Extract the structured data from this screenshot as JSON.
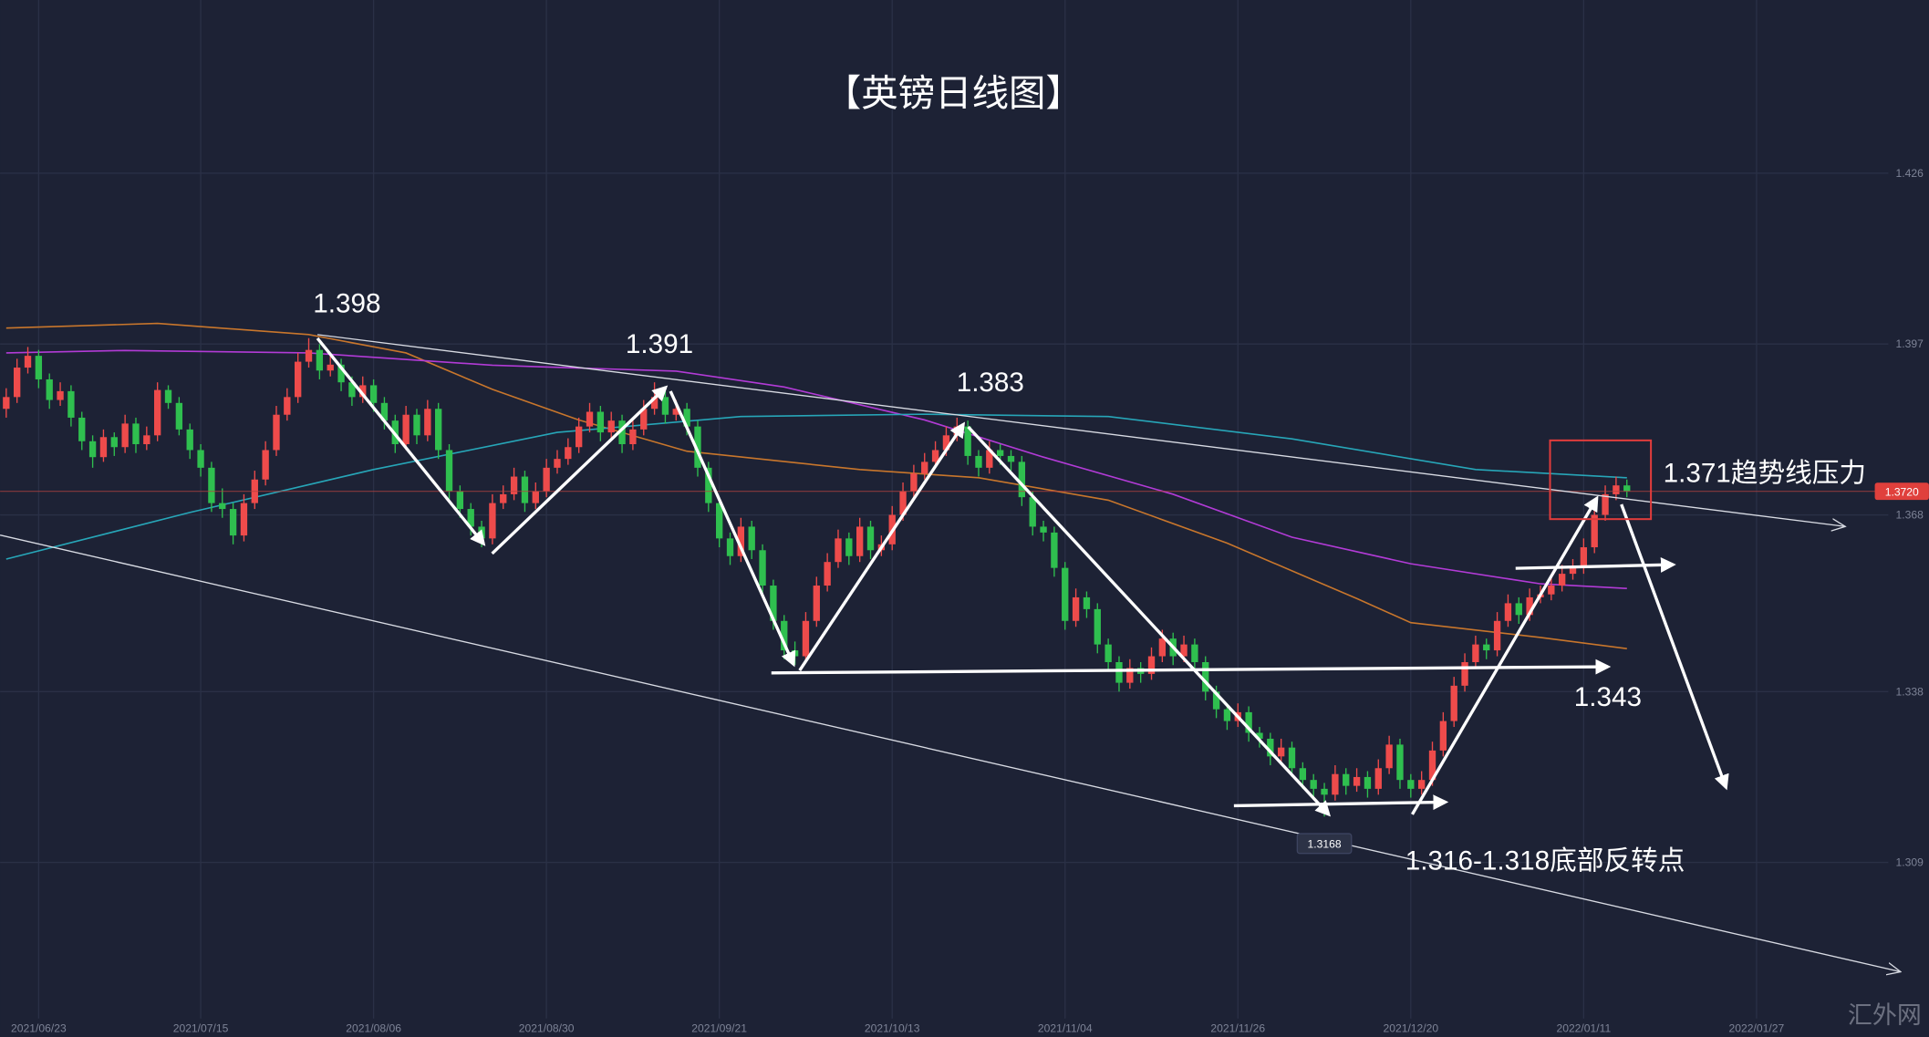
{
  "chart_data": {
    "type": "candlestick",
    "title": "【英镑日线图】",
    "up_color": "#ee4b4b",
    "down_color": "#2fbf4f",
    "candles": [
      [
        1.386,
        1.3895,
        1.3845,
        1.388
      ],
      [
        1.388,
        1.3945,
        1.387,
        1.393
      ],
      [
        1.393,
        1.3965,
        1.392,
        1.395
      ],
      [
        1.395,
        1.396,
        1.3895,
        1.391
      ],
      [
        1.391,
        1.392,
        1.386,
        1.3875
      ],
      [
        1.3875,
        1.3905,
        1.3865,
        1.389
      ],
      [
        1.389,
        1.39,
        1.383,
        1.3845
      ],
      [
        1.3845,
        1.3855,
        1.379,
        1.3805
      ],
      [
        1.3805,
        1.3815,
        1.376,
        1.3778
      ],
      [
        1.3778,
        1.3825,
        1.377,
        1.3812
      ],
      [
        1.3812,
        1.382,
        1.378,
        1.3795
      ],
      [
        1.3795,
        1.385,
        1.3785,
        1.3835
      ],
      [
        1.3835,
        1.3845,
        1.3785,
        1.38
      ],
      [
        1.38,
        1.383,
        1.379,
        1.3815
      ],
      [
        1.3815,
        1.3905,
        1.3805,
        1.3892
      ],
      [
        1.3892,
        1.39,
        1.386,
        1.387
      ],
      [
        1.387,
        1.388,
        1.3815,
        1.3825
      ],
      [
        1.3825,
        1.3835,
        1.3775,
        1.379
      ],
      [
        1.379,
        1.38,
        1.3745,
        1.376
      ],
      [
        1.376,
        1.377,
        1.3685,
        1.37
      ],
      [
        1.37,
        1.3725,
        1.3675,
        1.369
      ],
      [
        1.369,
        1.37,
        1.363,
        1.3645
      ],
      [
        1.3645,
        1.3715,
        1.3635,
        1.37
      ],
      [
        1.37,
        1.3755,
        1.369,
        1.374
      ],
      [
        1.374,
        1.3805,
        1.373,
        1.379
      ],
      [
        1.379,
        1.3865,
        1.378,
        1.385
      ],
      [
        1.385,
        1.3895,
        1.384,
        1.388
      ],
      [
        1.388,
        1.3955,
        1.387,
        1.394
      ],
      [
        1.394,
        1.398,
        1.393,
        1.396
      ],
      [
        1.396,
        1.397,
        1.391,
        1.3925
      ],
      [
        1.3925,
        1.395,
        1.3915,
        1.3935
      ],
      [
        1.3935,
        1.3945,
        1.389,
        1.3905
      ],
      [
        1.3905,
        1.3915,
        1.3865,
        1.388
      ],
      [
        1.388,
        1.3915,
        1.387,
        1.39
      ],
      [
        1.39,
        1.391,
        1.3855,
        1.387
      ],
      [
        1.387,
        1.388,
        1.3825,
        1.384
      ],
      [
        1.384,
        1.385,
        1.3785,
        1.38
      ],
      [
        1.38,
        1.3865,
        1.379,
        1.385
      ],
      [
        1.385,
        1.386,
        1.38,
        1.3815
      ],
      [
        1.3815,
        1.3875,
        1.3805,
        1.386
      ],
      [
        1.386,
        1.387,
        1.3775,
        1.379
      ],
      [
        1.379,
        1.38,
        1.3705,
        1.372
      ],
      [
        1.372,
        1.373,
        1.3675,
        1.369
      ],
      [
        1.369,
        1.37,
        1.3645,
        1.366
      ],
      [
        1.366,
        1.367,
        1.3625,
        1.364
      ],
      [
        1.364,
        1.3715,
        1.363,
        1.37
      ],
      [
        1.37,
        1.373,
        1.369,
        1.3715
      ],
      [
        1.3715,
        1.376,
        1.3705,
        1.3745
      ],
      [
        1.3745,
        1.3755,
        1.3685,
        1.37
      ],
      [
        1.37,
        1.3735,
        1.369,
        1.372
      ],
      [
        1.372,
        1.3775,
        1.371,
        1.376
      ],
      [
        1.376,
        1.379,
        1.375,
        1.3775
      ],
      [
        1.3775,
        1.381,
        1.3765,
        1.3795
      ],
      [
        1.3795,
        1.3845,
        1.3785,
        1.383
      ],
      [
        1.383,
        1.387,
        1.382,
        1.3855
      ],
      [
        1.3855,
        1.3865,
        1.3805,
        1.382
      ],
      [
        1.382,
        1.3855,
        1.381,
        1.384
      ],
      [
        1.384,
        1.385,
        1.3785,
        1.38
      ],
      [
        1.38,
        1.384,
        1.379,
        1.3825
      ],
      [
        1.3825,
        1.3875,
        1.3815,
        1.386
      ],
      [
        1.386,
        1.3905,
        1.385,
        1.388
      ],
      [
        1.388,
        1.389,
        1.3835,
        1.385
      ],
      [
        1.385,
        1.3875,
        1.384,
        1.386
      ],
      [
        1.386,
        1.387,
        1.3815,
        1.383
      ],
      [
        1.383,
        1.384,
        1.3745,
        1.376
      ],
      [
        1.376,
        1.377,
        1.3685,
        1.37
      ],
      [
        1.37,
        1.371,
        1.3625,
        1.364
      ],
      [
        1.364,
        1.365,
        1.3595,
        1.361
      ],
      [
        1.361,
        1.3675,
        1.36,
        1.366
      ],
      [
        1.366,
        1.367,
        1.3605,
        1.362
      ],
      [
        1.362,
        1.363,
        1.3545,
        1.356
      ],
      [
        1.356,
        1.357,
        1.3485,
        1.35
      ],
      [
        1.35,
        1.351,
        1.3435,
        1.345
      ],
      [
        1.345,
        1.3465,
        1.3425,
        1.344
      ],
      [
        1.344,
        1.3515,
        1.343,
        1.35
      ],
      [
        1.35,
        1.3575,
        1.349,
        1.356
      ],
      [
        1.356,
        1.3615,
        1.355,
        1.36
      ],
      [
        1.36,
        1.3655,
        1.359,
        1.364
      ],
      [
        1.364,
        1.365,
        1.3595,
        1.361
      ],
      [
        1.361,
        1.3675,
        1.36,
        1.366
      ],
      [
        1.366,
        1.367,
        1.3605,
        1.362
      ],
      [
        1.362,
        1.3645,
        1.361,
        1.363
      ],
      [
        1.363,
        1.3695,
        1.362,
        1.368
      ],
      [
        1.368,
        1.3735,
        1.367,
        1.372
      ],
      [
        1.372,
        1.3765,
        1.371,
        1.375
      ],
      [
        1.375,
        1.3785,
        1.374,
        1.377
      ],
      [
        1.377,
        1.3805,
        1.376,
        1.379
      ],
      [
        1.379,
        1.383,
        1.378,
        1.3815
      ],
      [
        1.3815,
        1.3845,
        1.3805,
        1.383
      ],
      [
        1.383,
        1.384,
        1.3765,
        1.378
      ],
      [
        1.378,
        1.379,
        1.3745,
        1.376
      ],
      [
        1.376,
        1.3805,
        1.375,
        1.379
      ],
      [
        1.379,
        1.38,
        1.3765,
        1.378
      ],
      [
        1.378,
        1.379,
        1.3755,
        1.377
      ],
      [
        1.377,
        1.378,
        1.3695,
        1.371
      ],
      [
        1.371,
        1.372,
        1.3645,
        1.366
      ],
      [
        1.366,
        1.367,
        1.3635,
        1.365
      ],
      [
        1.365,
        1.366,
        1.3575,
        1.359
      ],
      [
        1.359,
        1.36,
        1.3485,
        1.35
      ],
      [
        1.35,
        1.3555,
        1.349,
        1.354
      ],
      [
        1.354,
        1.355,
        1.3505,
        1.352
      ],
      [
        1.352,
        1.353,
        1.3445,
        1.346
      ],
      [
        1.346,
        1.347,
        1.3415,
        1.343
      ],
      [
        1.343,
        1.344,
        1.338,
        1.3395
      ],
      [
        1.3395,
        1.3435,
        1.3385,
        1.342
      ],
      [
        1.342,
        1.343,
        1.3395,
        1.341
      ],
      [
        1.341,
        1.3455,
        1.34,
        1.344
      ],
      [
        1.344,
        1.3485,
        1.343,
        1.347
      ],
      [
        1.347,
        1.348,
        1.3425,
        1.344
      ],
      [
        1.344,
        1.3475,
        1.343,
        1.346
      ],
      [
        1.346,
        1.347,
        1.3415,
        1.343
      ],
      [
        1.343,
        1.344,
        1.3365,
        1.338
      ],
      [
        1.338,
        1.339,
        1.3335,
        1.335
      ],
      [
        1.335,
        1.336,
        1.3315,
        1.333
      ],
      [
        1.333,
        1.336,
        1.332,
        1.3345
      ],
      [
        1.3345,
        1.3355,
        1.3295,
        1.331
      ],
      [
        1.331,
        1.332,
        1.3285,
        1.33
      ],
      [
        1.33,
        1.331,
        1.3255,
        1.327
      ],
      [
        1.327,
        1.33,
        1.326,
        1.3285
      ],
      [
        1.3285,
        1.3295,
        1.3235,
        1.325
      ],
      [
        1.325,
        1.326,
        1.3215,
        1.323
      ],
      [
        1.323,
        1.324,
        1.32,
        1.3215
      ],
      [
        1.3215,
        1.3225,
        1.3168,
        1.3205
      ],
      [
        1.3205,
        1.3255,
        1.3195,
        1.324
      ],
      [
        1.324,
        1.325,
        1.3205,
        1.322
      ],
      [
        1.322,
        1.325,
        1.321,
        1.3235
      ],
      [
        1.3235,
        1.3245,
        1.32,
        1.3215
      ],
      [
        1.3215,
        1.3265,
        1.3205,
        1.325
      ],
      [
        1.325,
        1.3305,
        1.324,
        1.329
      ],
      [
        1.329,
        1.33,
        1.3215,
        1.323
      ],
      [
        1.323,
        1.324,
        1.32,
        1.3215
      ],
      [
        1.3215,
        1.3245,
        1.3205,
        1.323
      ],
      [
        1.323,
        1.3295,
        1.322,
        1.328
      ],
      [
        1.328,
        1.3345,
        1.327,
        1.333
      ],
      [
        1.333,
        1.3405,
        1.332,
        1.339
      ],
      [
        1.339,
        1.3445,
        1.338,
        1.343
      ],
      [
        1.343,
        1.3475,
        1.342,
        1.346
      ],
      [
        1.346,
        1.347,
        1.3435,
        1.345
      ],
      [
        1.345,
        1.3515,
        1.344,
        1.35
      ],
      [
        1.35,
        1.3545,
        1.349,
        1.353
      ],
      [
        1.353,
        1.354,
        1.3495,
        1.351
      ],
      [
        1.351,
        1.3555,
        1.35,
        1.354
      ],
      [
        1.354,
        1.356,
        1.353,
        1.3545
      ],
      [
        1.3545,
        1.3575,
        1.3535,
        1.356
      ],
      [
        1.356,
        1.3595,
        1.355,
        1.358
      ],
      [
        1.358,
        1.3605,
        1.357,
        1.359
      ],
      [
        1.359,
        1.364,
        1.358,
        1.3625
      ],
      [
        1.3625,
        1.3695,
        1.3615,
        1.368
      ],
      [
        1.368,
        1.373,
        1.367,
        1.3715
      ],
      [
        1.3715,
        1.3745,
        1.3705,
        1.373
      ],
      [
        1.373,
        1.374,
        1.371,
        1.372
      ]
    ],
    "moving_averages": [
      {
        "color": "#c8762c",
        "x": [
          0,
          14,
          28,
          37,
          45,
          53,
          63,
          79,
          90,
          102,
          113,
          125,
          130,
          142,
          150
        ],
        "values": [
          1.3997,
          1.4005,
          1.3986,
          1.3955,
          1.3893,
          1.3841,
          1.3788,
          1.3757,
          1.3743,
          1.3705,
          1.3632,
          1.3538,
          1.3497,
          1.3472,
          1.3453
        ]
      },
      {
        "color": "#b23bd6",
        "x": [
          0,
          11,
          28,
          45,
          62,
          72,
          85,
          96,
          108,
          119,
          130,
          142,
          150
        ],
        "values": [
          1.3955,
          1.3959,
          1.3955,
          1.3934,
          1.3924,
          1.3897,
          1.3841,
          1.3778,
          1.3715,
          1.3642,
          1.3597,
          1.3563,
          1.3555
        ]
      },
      {
        "color": "#27a6b8",
        "x": [
          0,
          17,
          34,
          51,
          68,
          85,
          102,
          119,
          136,
          150
        ],
        "values": [
          1.3605,
          1.3684,
          1.3757,
          1.382,
          1.3847,
          1.3851,
          1.3847,
          1.3809,
          1.3757,
          1.3743
        ]
      }
    ],
    "xlim": [
      -0.57,
      174.2
    ],
    "xticks": [
      {
        "value": 3,
        "label": "2021/06/23"
      },
      {
        "value": 18,
        "label": "2021/07/15"
      },
      {
        "value": 34,
        "label": "2021/08/06"
      },
      {
        "value": 50,
        "label": "2021/08/30"
      },
      {
        "value": 66,
        "label": "2021/09/21"
      },
      {
        "value": 82,
        "label": "2021/10/13"
      },
      {
        "value": 98,
        "label": "2021/11/04"
      },
      {
        "value": 114,
        "label": "2021/11/26"
      },
      {
        "value": 130,
        "label": "2021/12/20"
      },
      {
        "value": 146,
        "label": "2022/01/11"
      },
      {
        "value": 162,
        "label": "2022/01/27"
      }
    ],
    "ylim": [
      1.2825,
      1.4554
    ],
    "yticks": [
      1.426,
      1.397,
      1.368,
      1.338,
      1.309
    ],
    "grid": true,
    "last_price_label": "1.3720",
    "annotations": [
      "1.398",
      "1.391",
      "1.383",
      "1.371趋势线压力",
      "1.343",
      "1.316-1.318底部反转点"
    ],
    "watermark": "汇外网"
  }
}
